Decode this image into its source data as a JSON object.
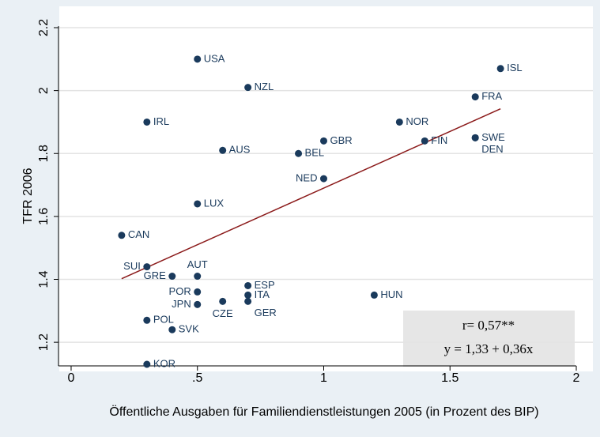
{
  "chart_data": {
    "type": "scatter",
    "x_label": "Öffentliche Ausgaben für Familiendienstleistungen 2005 (in Prozent des BIP)",
    "y_label": "TFR 2006",
    "xlim": [
      -0.05,
      2
    ],
    "ylim": [
      1.13,
      2.2
    ],
    "xticks": [
      0,
      {
        "value": 0.5,
        "label": ".5"
      },
      1,
      1.5,
      2
    ],
    "yticks": [
      1.2,
      1.4,
      1.6,
      1.8,
      2,
      2.2
    ],
    "grid": true,
    "series": [
      {
        "color": "#1a3a5c",
        "labels": [
          "USA",
          "ISL",
          "NZL",
          "FRA",
          "IRL",
          "NOR",
          "GBR",
          "FIN",
          "SWE",
          "DEN",
          "AUS",
          "BEL",
          "NED",
          "LUX",
          "CAN",
          "SUI",
          "GRE",
          "AUT",
          "ESP",
          "POR",
          "ITA",
          "HUN",
          "JPN",
          "CZE",
          "GER",
          "POL",
          "SVK",
          "KOR"
        ],
        "x": [
          0.5,
          1.7,
          0.7,
          1.6,
          0.3,
          1.3,
          1.0,
          1.4,
          1.6,
          1.6,
          0.6,
          0.9,
          1.0,
          0.5,
          0.2,
          0.3,
          0.4,
          0.5,
          0.7,
          0.5,
          0.7,
          1.2,
          0.5,
          0.6,
          0.7,
          0.3,
          0.4,
          0.3
        ],
        "values": [
          2.1,
          2.07,
          2.01,
          1.98,
          1.9,
          1.9,
          1.84,
          1.84,
          1.85,
          1.85,
          1.81,
          1.8,
          1.72,
          1.64,
          1.54,
          1.44,
          1.41,
          1.41,
          1.38,
          1.36,
          1.35,
          1.35,
          1.32,
          1.33,
          1.33,
          1.27,
          1.24,
          1.13
        ]
      }
    ],
    "fit_line": {
      "color": "#8b1a1a",
      "x": [
        0.2,
        1.7
      ],
      "values": [
        1.402,
        1.942
      ]
    },
    "annotations": [
      "r= 0,57**",
      "y = 1,33 + 0,36x"
    ]
  }
}
